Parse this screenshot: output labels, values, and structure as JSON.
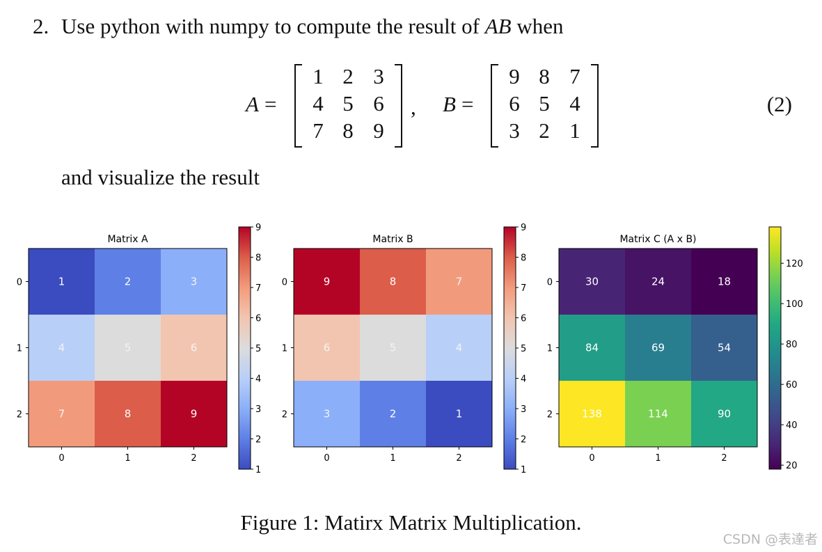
{
  "problem": {
    "number": "2.",
    "text_before": "Use python with numpy to compute the result of ",
    "var_ab": "AB",
    "text_after": " when",
    "continuation": "and visualize the result"
  },
  "equation": {
    "a_label": "A",
    "b_label": "B",
    "equals": "=",
    "comma": ",",
    "number": "(2)",
    "matrix_a": [
      [
        "1",
        "2",
        "3"
      ],
      [
        "4",
        "5",
        "6"
      ],
      [
        "7",
        "8",
        "9"
      ]
    ],
    "matrix_b": [
      [
        "9",
        "8",
        "7"
      ],
      [
        "6",
        "5",
        "4"
      ],
      [
        "3",
        "2",
        "1"
      ]
    ]
  },
  "figure": {
    "caption": "Figure 1: Matirx Matrix Multiplication."
  },
  "watermark": "CSDN @表達者",
  "chart_data": [
    {
      "type": "heatmap",
      "title": "Matrix A",
      "x": [
        0,
        1,
        2
      ],
      "y": [
        0,
        1,
        2
      ],
      "values": [
        [
          1,
          2,
          3
        ],
        [
          4,
          5,
          6
        ],
        [
          7,
          8,
          9
        ]
      ],
      "colormap": "coolwarm",
      "colorbar": {
        "range": [
          1,
          9
        ],
        "ticks": [
          1,
          2,
          3,
          4,
          5,
          6,
          7,
          8,
          9
        ]
      }
    },
    {
      "type": "heatmap",
      "title": "Matrix B",
      "x": [
        0,
        1,
        2
      ],
      "y": [
        0,
        1,
        2
      ],
      "values": [
        [
          9,
          8,
          7
        ],
        [
          6,
          5,
          4
        ],
        [
          3,
          2,
          1
        ]
      ],
      "colormap": "coolwarm",
      "colorbar": {
        "range": [
          1,
          9
        ],
        "ticks": [
          1,
          2,
          3,
          4,
          5,
          6,
          7,
          8,
          9
        ]
      }
    },
    {
      "type": "heatmap",
      "title": "Matrix C (A x B)",
      "x": [
        0,
        1,
        2
      ],
      "y": [
        0,
        1,
        2
      ],
      "values": [
        [
          30,
          24,
          18
        ],
        [
          84,
          69,
          54
        ],
        [
          138,
          114,
          90
        ]
      ],
      "colormap": "viridis",
      "colorbar": {
        "range": [
          18,
          138
        ],
        "ticks": [
          20,
          40,
          60,
          80,
          100,
          120
        ]
      }
    }
  ]
}
